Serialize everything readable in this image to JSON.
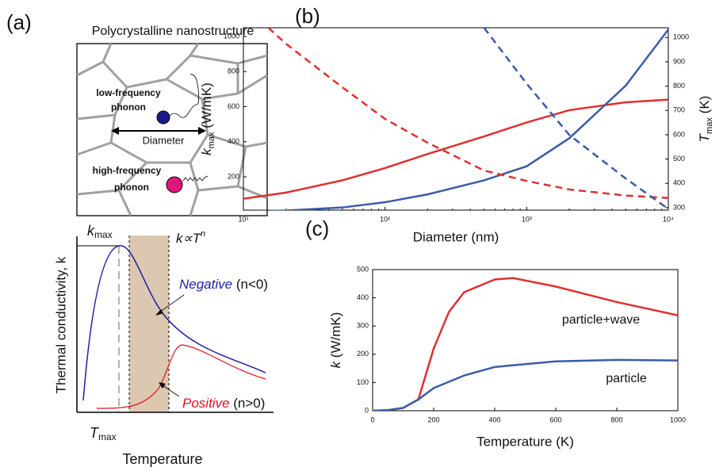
{
  "panel_labels": [
    "(a)",
    "(b)",
    "(c)"
  ],
  "schematic": {
    "title": "Polycrystalline nanostructure",
    "low_label": [
      "low-frequency",
      "phonon"
    ],
    "diameter_label": "Diameter",
    "high_label": [
      "high-frequency",
      "phonon"
    ],
    "kmax": {
      "symbol": "k",
      "subscript": "max"
    },
    "tmax": {
      "symbol": "T",
      "subscript": "max"
    },
    "ylabel": "Thermal conductivity, k",
    "xlabel": "Temperature",
    "power_law": {
      "base": "k∝T",
      "exponent": "n"
    },
    "negative": {
      "word": "Negative",
      "condition": "(n<0)"
    },
    "positive": {
      "word": "Positive",
      "condition": "(n>0)"
    }
  },
  "chart_data": [
    {
      "type": "line",
      "xscale": "log",
      "xlabel": "Diameter (nm)",
      "ylabel": {
        "symbol": "k",
        "subscript": "max",
        "unit": "(W/mK)"
      },
      "y2label": {
        "symbol": "T",
        "subscript": "max",
        "unit": "(K)"
      },
      "xlim": [
        10,
        10000
      ],
      "xticks": [
        {
          "value": 10,
          "label": "10¹"
        },
        {
          "value": 100,
          "label": "10²"
        },
        {
          "value": 1000,
          "label": "10³"
        },
        {
          "value": 10000,
          "label": "10⁴"
        }
      ],
      "ylim": [
        10,
        1050
      ],
      "yticks": [
        200,
        400,
        600,
        800,
        1000
      ],
      "y2lim": [
        290,
        1040
      ],
      "y2ticks": [
        300,
        400,
        500,
        600,
        700,
        800,
        900,
        1000
      ],
      "series": [
        {
          "color": "#e03030",
          "linestyle": "solid",
          "x": [
            10,
            20,
            50,
            100,
            200,
            500,
            1000,
            2000,
            5000,
            10000
          ],
          "values": [
            75,
            110,
            180,
            250,
            330,
            430,
            510,
            580,
            625,
            640
          ]
        },
        {
          "color": "#3a5ca8",
          "linestyle": "solid",
          "x": [
            10,
            20,
            50,
            100,
            200,
            500,
            1000,
            2000,
            5000,
            10000
          ],
          "values": [
            3,
            8,
            25,
            55,
            100,
            180,
            260,
            420,
            720,
            1040
          ]
        },
        {
          "color": "#e03030",
          "linestyle": "dashed",
          "axis": "y2",
          "x": [
            15,
            20,
            50,
            100,
            200,
            500,
            1000,
            2000,
            5000,
            10000
          ],
          "values": [
            1040,
            974,
            795,
            665,
            567,
            453,
            410,
            375,
            350,
            340
          ]
        },
        {
          "color": "#3a5ca8",
          "linestyle": "dashed",
          "axis": "y2",
          "x": [
            500,
            1000,
            2000,
            5000,
            10000
          ],
          "values": [
            1040,
            810,
            599,
            420,
            295
          ]
        }
      ]
    },
    {
      "type": "line",
      "xlabel": "Temperature (K)",
      "ylabel": {
        "symbol": "k",
        "unit": "(W/mK)"
      },
      "xlim": [
        0,
        1000
      ],
      "xticks": [
        0,
        200,
        400,
        600,
        800,
        1000
      ],
      "ylim": [
        0,
        500
      ],
      "yticks": [
        0,
        100,
        200,
        300,
        400,
        500
      ],
      "series": [
        {
          "name": "particle+wave",
          "color": "#e03030",
          "linestyle": "solid",
          "x": [
            0,
            50,
            100,
            150,
            200,
            250,
            300,
            400,
            460,
            600,
            800,
            1000
          ],
          "values": [
            0,
            2,
            10,
            40,
            220,
            350,
            420,
            465,
            470,
            440,
            385,
            338
          ]
        },
        {
          "name": "particle",
          "color": "#3a5ca8",
          "linestyle": "solid",
          "x": [
            0,
            50,
            100,
            150,
            200,
            300,
            400,
            600,
            800,
            1000
          ],
          "values": [
            0,
            2,
            10,
            40,
            80,
            125,
            155,
            175,
            180,
            178
          ]
        }
      ]
    }
  ]
}
